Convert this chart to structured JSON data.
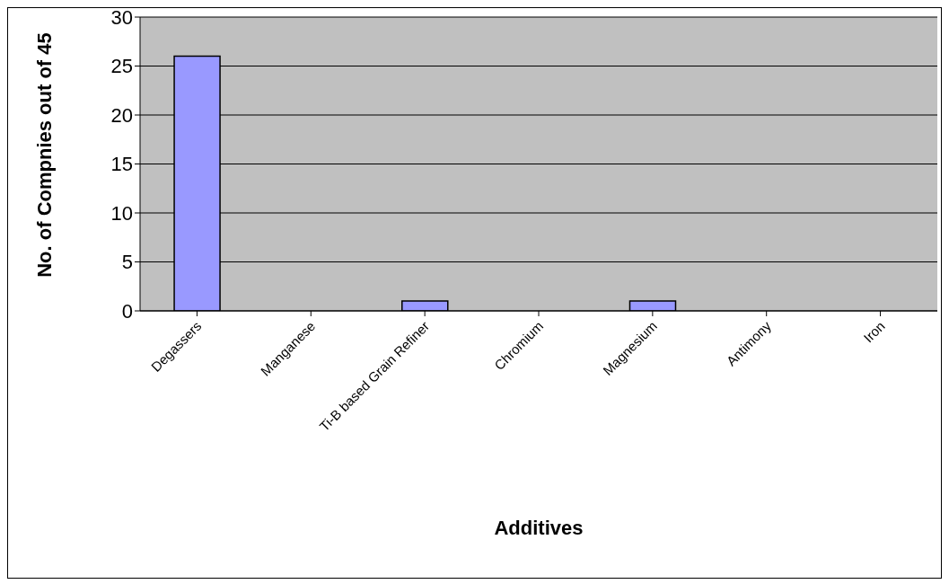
{
  "chart_data": {
    "type": "bar",
    "xlabel": "Additives",
    "ylabel": "No. of Compnies out of 45",
    "categories": [
      "Degassers",
      "Manganese",
      "Ti-B based Grain Refiner",
      "Chromium",
      "Magnesium",
      "Antimony",
      "Iron"
    ],
    "values": [
      26,
      0,
      1,
      0,
      1,
      0,
      0
    ],
    "color": "#9999ff",
    "ylim": [
      0,
      30
    ],
    "yticks": [
      0,
      5,
      10,
      15,
      20,
      25,
      30
    ],
    "grid": "y"
  }
}
